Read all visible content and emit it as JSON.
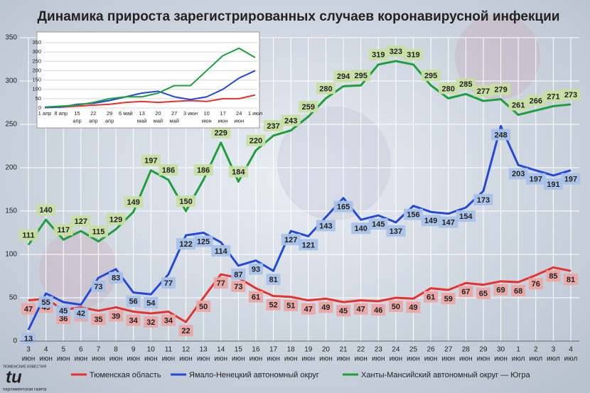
{
  "chart_data": [
    {
      "type": "line",
      "title": "Динамика прироста зарегистрированных случаев коронавирусной инфекции",
      "categories": [
        [
          "3",
          "июн"
        ],
        [
          "4",
          "июн"
        ],
        [
          "5",
          "июн"
        ],
        [
          "6",
          "июн"
        ],
        [
          "7",
          "июн"
        ],
        [
          "8",
          "июн"
        ],
        [
          "9",
          "июн"
        ],
        [
          "10",
          "июн"
        ],
        [
          "11",
          "июн"
        ],
        [
          "12",
          "июн"
        ],
        [
          "13",
          "июн"
        ],
        [
          "14",
          "июн"
        ],
        [
          "15",
          "июн"
        ],
        [
          "16",
          "июн"
        ],
        [
          "17",
          "июн"
        ],
        [
          "18",
          "июн"
        ],
        [
          "19",
          "июн"
        ],
        [
          "20",
          "июн"
        ],
        [
          "21",
          "июн"
        ],
        [
          "22",
          "июн"
        ],
        [
          "23",
          "июн"
        ],
        [
          "24",
          "июн"
        ],
        [
          "25",
          "июн"
        ],
        [
          "26",
          "июн"
        ],
        [
          "27",
          "июн"
        ],
        [
          "28",
          "июн"
        ],
        [
          "29",
          "июн"
        ],
        [
          "30",
          "июн"
        ],
        [
          "1",
          "июл"
        ],
        [
          "2",
          "июл"
        ],
        [
          "3",
          "июл"
        ],
        [
          "4",
          "июл"
        ]
      ],
      "series": [
        {
          "name": "Тюменская область",
          "color": "#e8312f",
          "label_fill": "#eaa6a4",
          "values": [
            47,
            49,
            36,
            39,
            35,
            39,
            34,
            32,
            34,
            22,
            50,
            77,
            73,
            61,
            52,
            51,
            47,
            49,
            45,
            47,
            46,
            50,
            49,
            61,
            59,
            67,
            65,
            69,
            68,
            76,
            85,
            81
          ]
        },
        {
          "name": "Ямало-Ненецкий автономный округ",
          "color": "#2448d8",
          "label_fill": "#a9c2e8",
          "values": [
            13,
            55,
            45,
            42,
            73,
            83,
            56,
            54,
            77,
            122,
            125,
            114,
            87,
            93,
            81,
            127,
            121,
            143,
            165,
            140,
            145,
            137,
            156,
            149,
            147,
            154,
            173,
            248,
            203,
            197,
            191,
            197
          ]
        },
        {
          "name": "Ханты-Мансийский автономный округ — Югра",
          "color": "#1e9e3c",
          "label_fill": "#c7dfa2",
          "values": [
            111,
            140,
            117,
            127,
            115,
            129,
            149,
            197,
            186,
            150,
            186,
            229,
            184,
            220,
            237,
            243,
            259,
            280,
            294,
            295,
            319,
            323,
            319,
            295,
            280,
            285,
            277,
            279,
            261,
            266,
            271,
            273
          ]
        }
      ],
      "ylim": [
        0,
        350
      ],
      "yticks": [
        0,
        50,
        100,
        150,
        200,
        250,
        300,
        350
      ],
      "grid": true,
      "legend": "bottom",
      "logo": [
        "ТЮМЕНСКИЕ ИЗВЕСТИЯ",
        "tи",
        "парламентская газета"
      ]
    },
    {
      "type": "line",
      "categories": [
        [
          "1 апр"
        ],
        [
          "8 апр"
        ],
        [
          "15",
          "апр"
        ],
        [
          "22",
          "апр"
        ],
        [
          "29",
          "апр"
        ],
        [
          "6 май"
        ],
        [
          "13",
          "май"
        ],
        [
          "20",
          "май"
        ],
        [
          "27",
          "май"
        ],
        [
          "3 июн"
        ],
        [
          "10",
          "июн"
        ],
        [
          "17",
          "июн"
        ],
        [
          "24",
          "июн"
        ],
        [
          "1 июл"
        ]
      ],
      "series": [
        {
          "color": "#e8312f",
          "values": [
            2,
            5,
            10,
            15,
            20,
            30,
            35,
            30,
            35,
            40,
            35,
            50,
            50,
            70
          ]
        },
        {
          "color": "#2448d8",
          "values": [
            3,
            5,
            20,
            25,
            40,
            60,
            80,
            90,
            60,
            45,
            60,
            100,
            160,
            200
          ]
        },
        {
          "color": "#1e9e3c",
          "values": [
            5,
            10,
            15,
            30,
            50,
            60,
            60,
            80,
            120,
            120,
            200,
            280,
            320,
            270
          ]
        }
      ],
      "ylim": [
        0,
        350
      ],
      "yticks": [
        0,
        50,
        100,
        150,
        200,
        250,
        300,
        350
      ]
    }
  ]
}
